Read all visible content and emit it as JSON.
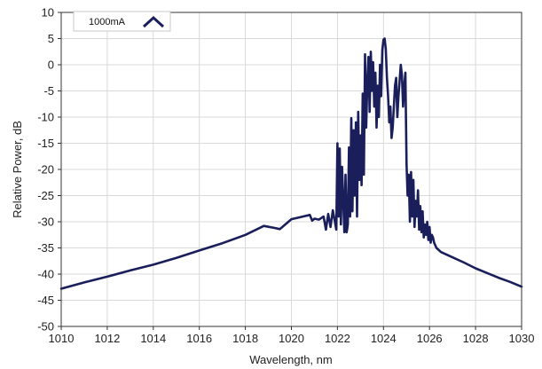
{
  "chart_data": {
    "type": "line",
    "xlabel": "Wavelength, nm",
    "ylabel": "Relative Power, dB",
    "xlim": [
      1010,
      1030
    ],
    "ylim": [
      -50,
      10
    ],
    "xticks": [
      1010,
      1012,
      1014,
      1016,
      1018,
      1020,
      1022,
      1024,
      1026,
      1028,
      1030
    ],
    "yticks": [
      10,
      5,
      0,
      -5,
      -10,
      -15,
      -20,
      -25,
      -30,
      -35,
      -40,
      -45,
      -50
    ],
    "grid": true,
    "legend_position": "top-left",
    "series": [
      {
        "name": "1000mA",
        "color": "#1a1f5c",
        "x": [
          1010,
          1011,
          1012,
          1013,
          1014,
          1015,
          1016,
          1017,
          1018,
          1018.8,
          1019.3,
          1019.5,
          1020,
          1020.5,
          1020.8,
          1020.9,
          1021,
          1021.2,
          1021.4,
          1021.5,
          1021.6,
          1021.7,
          1021.8,
          1021.95,
          1022,
          1022.05,
          1022.1,
          1022.15,
          1022.2,
          1022.3,
          1022.35,
          1022.4,
          1022.45,
          1022.5,
          1022.55,
          1022.6,
          1022.65,
          1022.7,
          1022.75,
          1022.8,
          1022.85,
          1022.9,
          1022.95,
          1023,
          1023.05,
          1023.1,
          1023.15,
          1023.2,
          1023.25,
          1023.3,
          1023.35,
          1023.4,
          1023.45,
          1023.5,
          1023.55,
          1023.6,
          1023.65,
          1023.7,
          1023.75,
          1023.8,
          1023.85,
          1023.9,
          1023.95,
          1024,
          1024.05,
          1024.1,
          1024.15,
          1024.2,
          1024.25,
          1024.3,
          1024.35,
          1024.4,
          1024.45,
          1024.5,
          1024.55,
          1024.6,
          1024.65,
          1024.7,
          1024.75,
          1024.8,
          1024.85,
          1024.9,
          1024.95,
          1025,
          1025.05,
          1025.1,
          1025.15,
          1025.2,
          1025.25,
          1025.3,
          1025.35,
          1025.4,
          1025.45,
          1025.5,
          1025.55,
          1025.6,
          1025.65,
          1025.7,
          1025.75,
          1025.8,
          1025.85,
          1025.9,
          1025.95,
          1026,
          1026.05,
          1026.1,
          1026.15,
          1026.2,
          1026.3,
          1026.5,
          1026.7,
          1027,
          1027.5,
          1028,
          1028.5,
          1029,
          1029.5,
          1030
        ],
        "y": [
          -42.8,
          -41.6,
          -40.5,
          -39.3,
          -38.2,
          -36.9,
          -35.5,
          -34.1,
          -32.5,
          -30.8,
          -31.2,
          -31.4,
          -29.5,
          -29.0,
          -28.7,
          -29.8,
          -29.4,
          -29.6,
          -29.0,
          -31.5,
          -28.5,
          -31.0,
          -27.8,
          -31.5,
          -15.0,
          -29.0,
          -16.0,
          -30.5,
          -19.5,
          -32.0,
          -21.0,
          -32.0,
          -30.5,
          -15.8,
          -29.0,
          -10.2,
          -28.0,
          -12.5,
          -25.0,
          -11.0,
          -29.0,
          -9.0,
          -22.0,
          -13.5,
          -23.0,
          -5.5,
          -21.0,
          2.0,
          -12.0,
          -3.5,
          1.5,
          -9.0,
          2.5,
          -5.0,
          0.5,
          -8.0,
          -1.5,
          -12.0,
          -4.0,
          -10.0,
          0.0,
          -6.0,
          2.8,
          4.8,
          5.0,
          3.0,
          -2.5,
          -6.0,
          -11.0,
          -8.0,
          -14.0,
          -12.0,
          -8.0,
          -4.0,
          -2.5,
          -10.0,
          -6.0,
          -3.0,
          0.0,
          -2.0,
          -8.0,
          -4.0,
          -1.5,
          -19.0,
          -25.0,
          -21.0,
          -30.0,
          -20.5,
          -29.0,
          -22.0,
          -31.0,
          -26.0,
          -29.0,
          -24.0,
          -31.5,
          -27.0,
          -32.0,
          -28.0,
          -33.0,
          -30.5,
          -32.5,
          -30.0,
          -33.5,
          -31.0,
          -34.0,
          -32.5,
          -33.0,
          -34.0,
          -35.0,
          -35.8,
          -36.2,
          -36.8,
          -37.8,
          -38.9,
          -39.8,
          -40.7,
          -41.5,
          -42.4
        ]
      }
    ]
  }
}
